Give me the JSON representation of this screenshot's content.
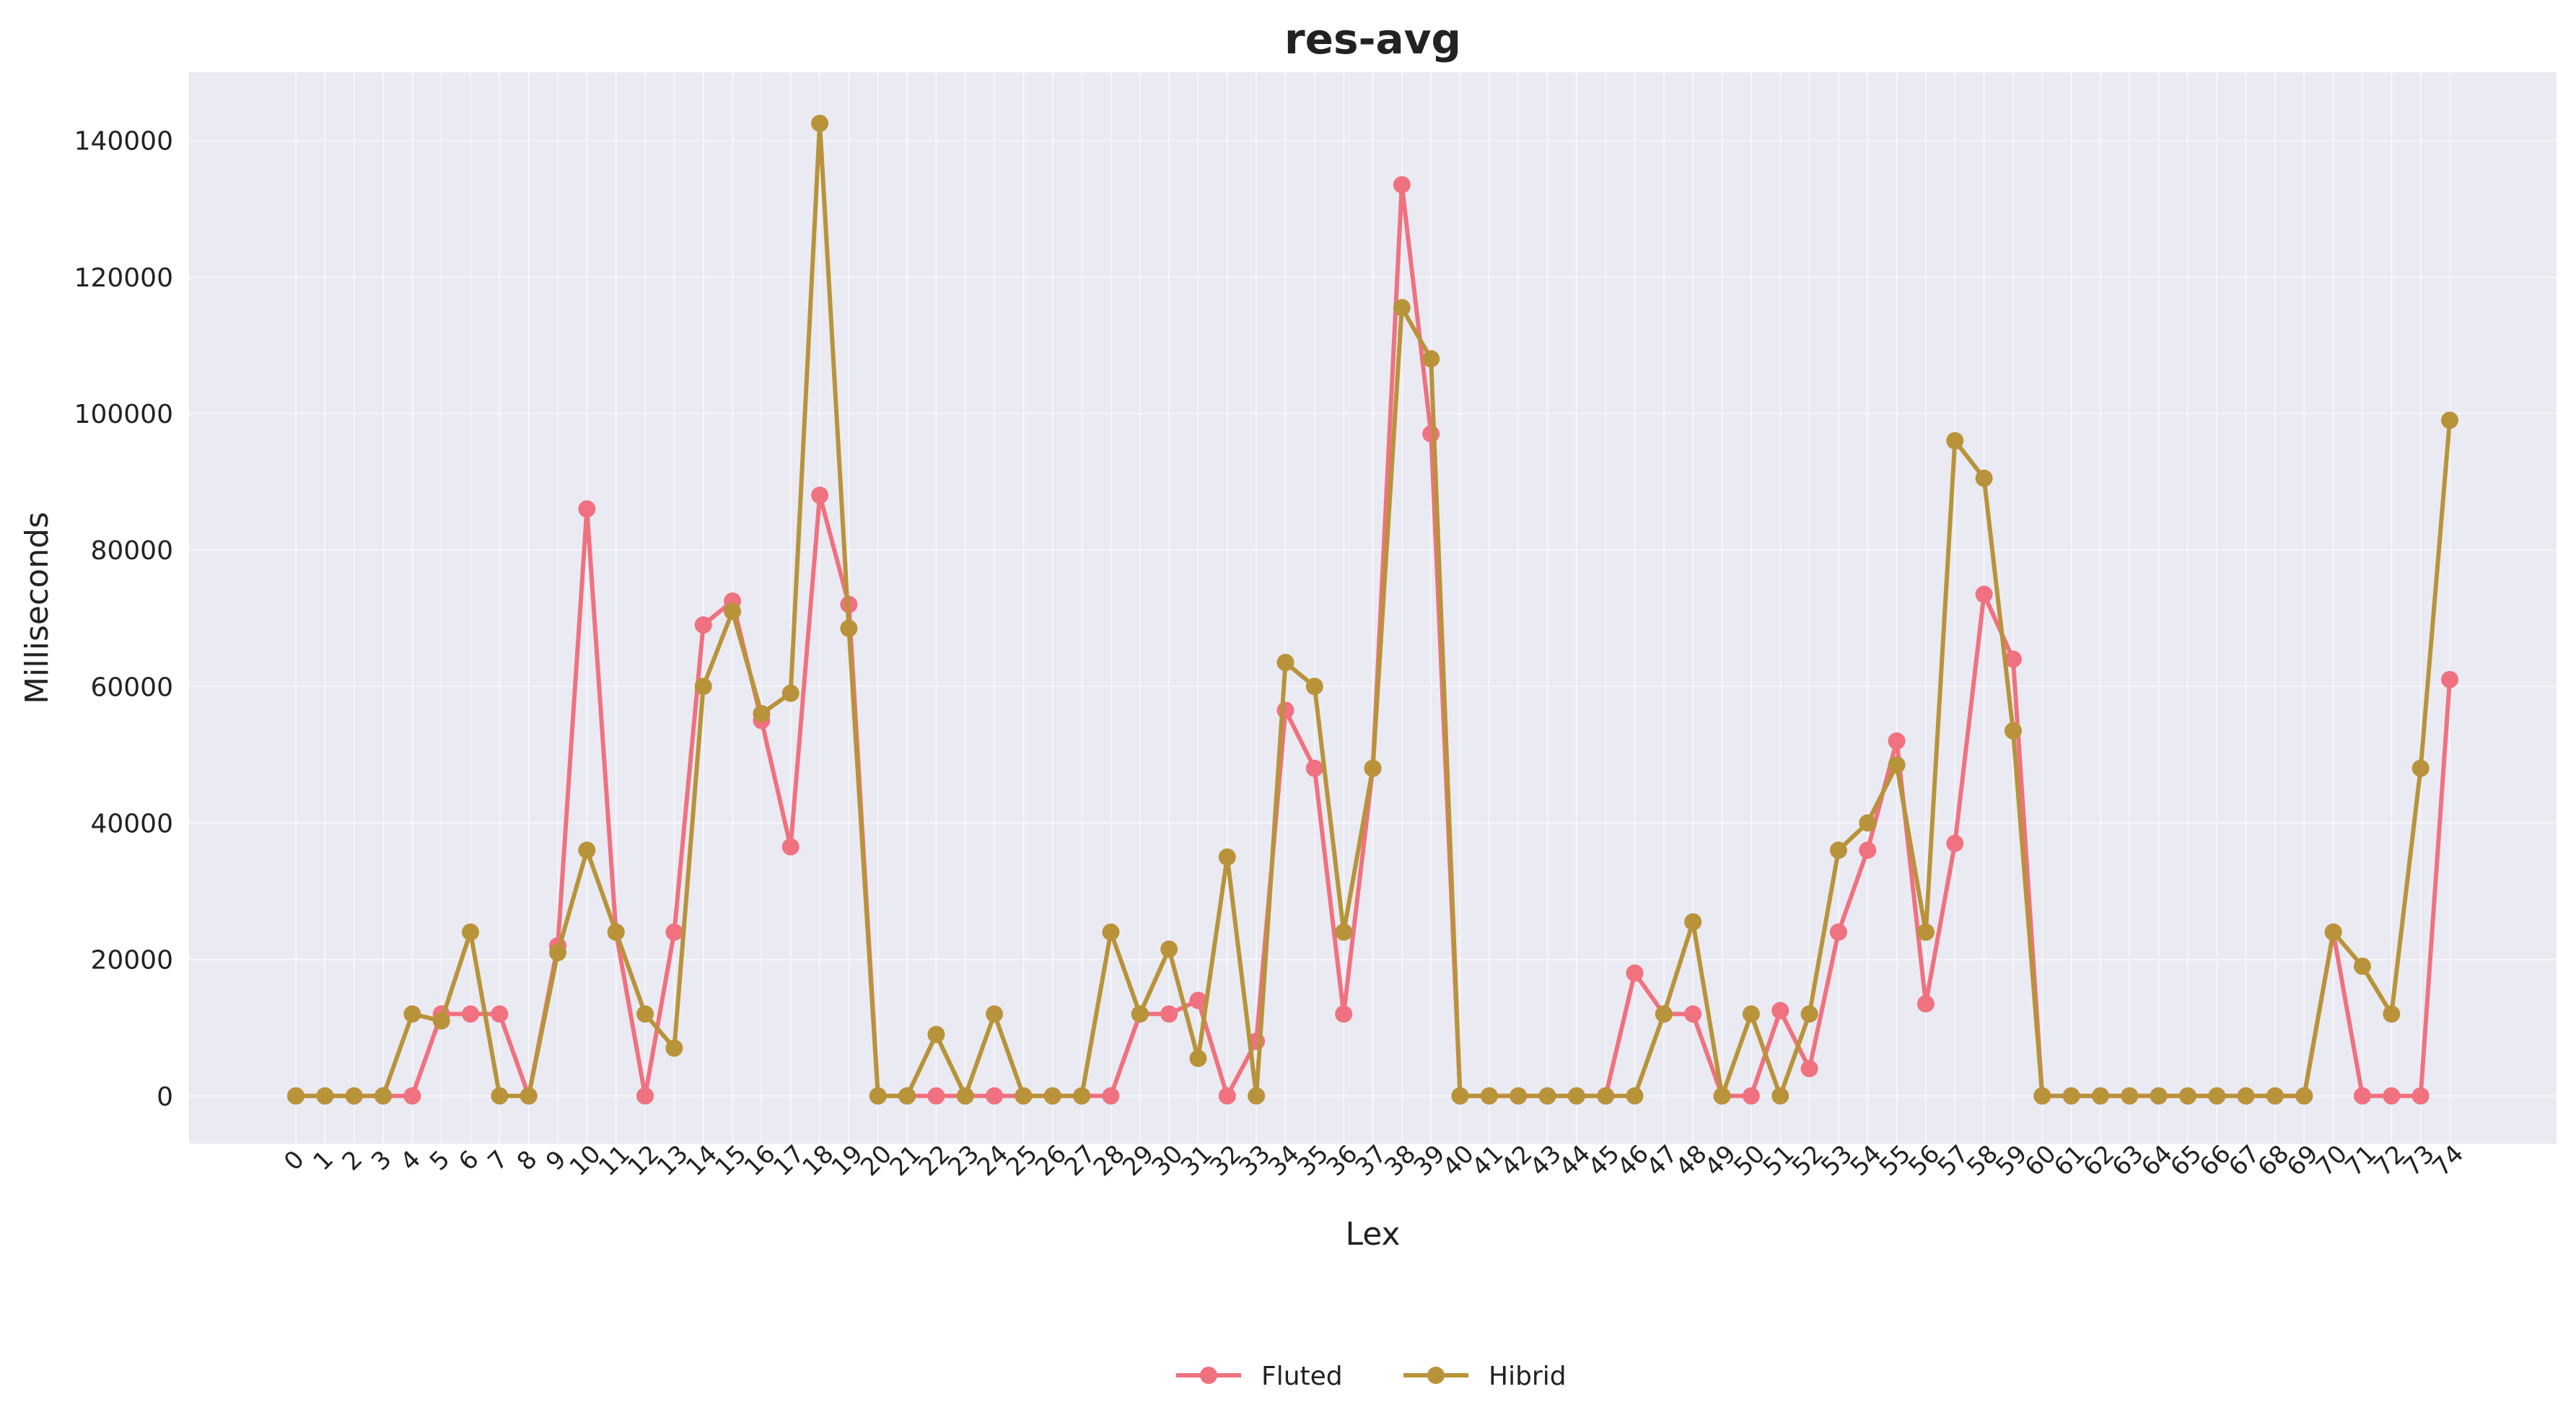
{
  "chart_data": {
    "type": "line",
    "title": "res-avg",
    "xlabel": "Lex",
    "ylabel": "Milliseconds",
    "categories": [
      "0",
      "1",
      "2",
      "3",
      "4",
      "5",
      "6",
      "7",
      "8",
      "9",
      "10",
      "11",
      "12",
      "13",
      "14",
      "15",
      "16",
      "17",
      "18",
      "19",
      "20",
      "21",
      "22",
      "23",
      "24",
      "25",
      "26",
      "27",
      "28",
      "29",
      "30",
      "31",
      "32",
      "33",
      "34",
      "35",
      "36",
      "37",
      "38",
      "39",
      "40",
      "41",
      "42",
      "43",
      "44",
      "45",
      "46",
      "47",
      "48",
      "49",
      "50",
      "51",
      "52",
      "53",
      "54",
      "55",
      "56",
      "57",
      "58",
      "59",
      "60",
      "61",
      "62",
      "63",
      "64",
      "65",
      "66",
      "67",
      "68",
      "69",
      "70",
      "71",
      "72",
      "73",
      "74"
    ],
    "ylim": [
      -7000,
      150000
    ],
    "yticks": [
      0,
      20000,
      40000,
      60000,
      80000,
      100000,
      120000,
      140000
    ],
    "grid": true,
    "legend_position": "bottom-center",
    "series": [
      {
        "name": "Fluted",
        "color": "#f0717f",
        "values": [
          0,
          0,
          0,
          0,
          0,
          12000,
          12000,
          12000,
          0,
          22000,
          86000,
          24000,
          0,
          24000,
          69000,
          72500,
          55000,
          36500,
          88000,
          72000,
          0,
          0,
          0,
          0,
          0,
          0,
          0,
          0,
          0,
          12000,
          12000,
          14000,
          0,
          8000,
          56500,
          48000,
          12000,
          48000,
          133500,
          97000,
          0,
          0,
          0,
          0,
          0,
          0,
          18000,
          12000,
          12000,
          0,
          0,
          12500,
          4000,
          24000,
          36000,
          52000,
          13500,
          37000,
          73500,
          64000,
          0,
          0,
          0,
          0,
          0,
          0,
          0,
          0,
          0,
          0,
          24000,
          0,
          0,
          0,
          61000
        ]
      },
      {
        "name": "Hibrid",
        "color": "#b9933a",
        "values": [
          0,
          0,
          0,
          0,
          12000,
          11000,
          24000,
          0,
          0,
          21000,
          36000,
          24000,
          12000,
          7000,
          60000,
          71000,
          56000,
          59000,
          142500,
          68500,
          0,
          0,
          9000,
          0,
          12000,
          0,
          0,
          0,
          24000,
          12000,
          21500,
          5500,
          35000,
          0,
          63500,
          60000,
          24000,
          48000,
          115500,
          108000,
          0,
          0,
          0,
          0,
          0,
          0,
          0,
          12000,
          25500,
          0,
          12000,
          0,
          12000,
          36000,
          40000,
          48500,
          24000,
          96000,
          90500,
          53500,
          0,
          0,
          0,
          0,
          0,
          0,
          0,
          0,
          0,
          0,
          24000,
          19000,
          12000,
          48000,
          99000
        ]
      }
    ]
  }
}
